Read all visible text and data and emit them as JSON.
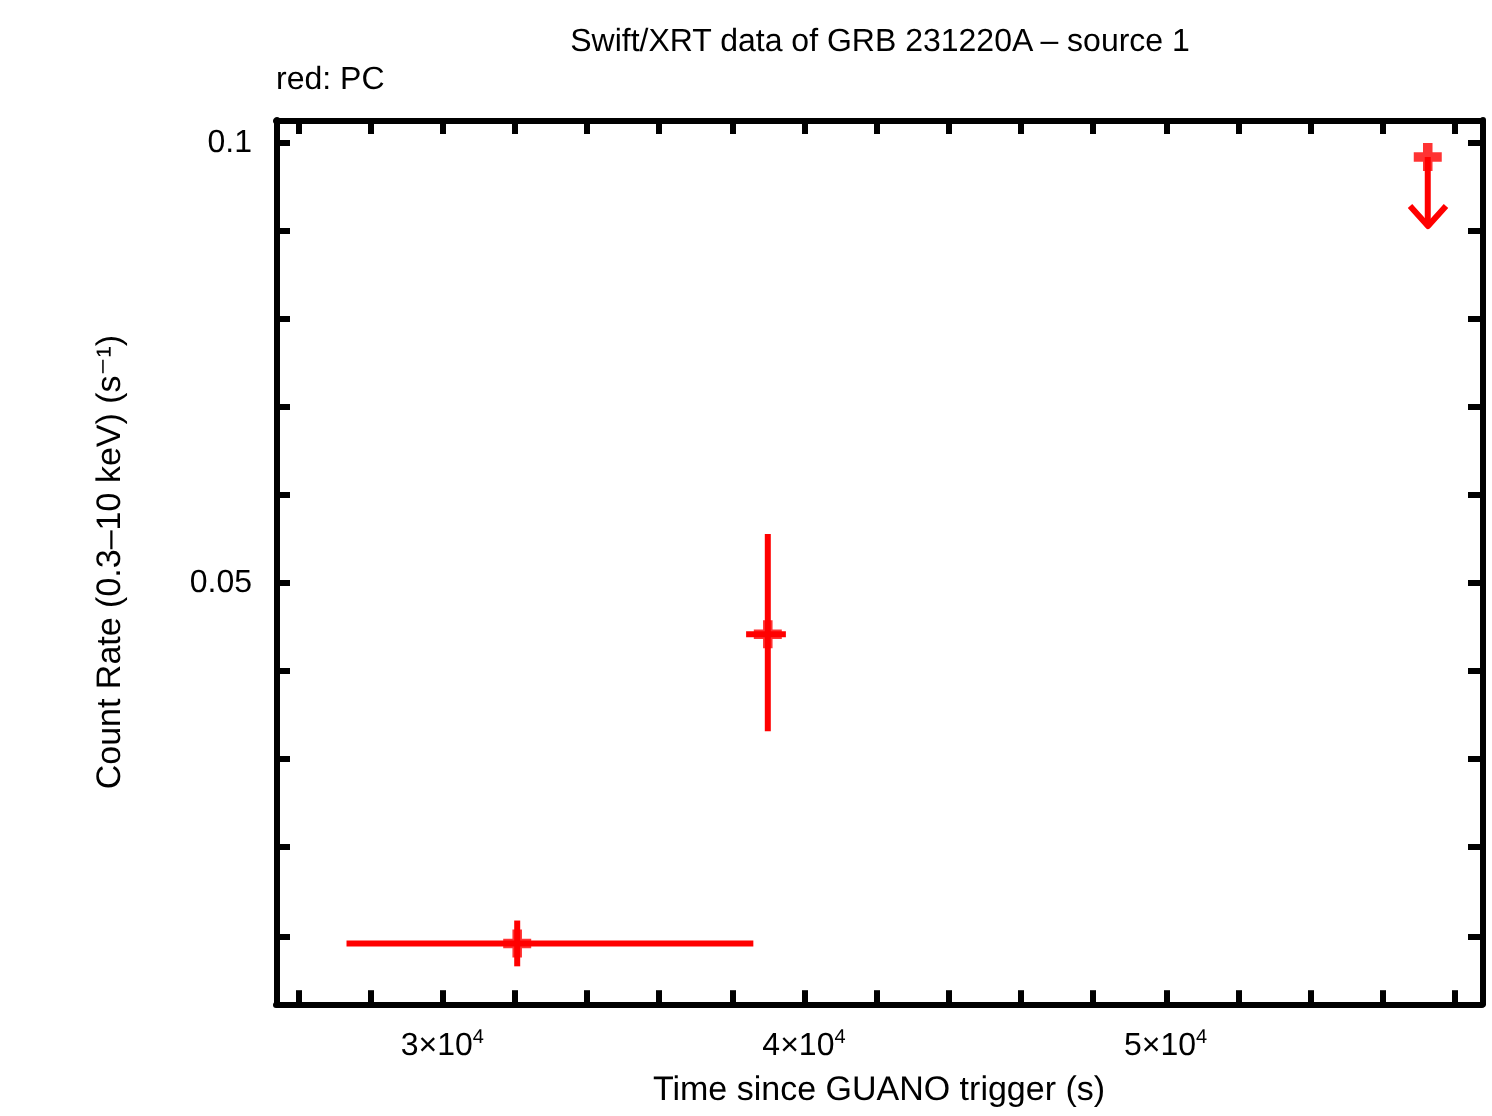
{
  "chart_data": {
    "type": "scatter",
    "title": "Swift/XRT data of GRB 231220A – source 1",
    "xlabel": "Time since GUANO trigger (s)",
    "ylabel": "Count Rate (0.3–10 keV) (s⁻¹)",
    "annotations": [
      "red: PC"
    ],
    "marker": "cross",
    "grid": false,
    "xlim": [
      25400,
      58750
    ],
    "ylim": [
      0.0022,
      0.1026
    ],
    "xticks": [
      {
        "value": 26000,
        "label": null
      },
      {
        "value": 28000,
        "label": null
      },
      {
        "value": 30000,
        "label": "3×10$^{4}$"
      },
      {
        "value": 32000,
        "label": null
      },
      {
        "value": 34000,
        "label": null
      },
      {
        "value": 36000,
        "label": null
      },
      {
        "value": 38000,
        "label": null
      },
      {
        "value": 40000,
        "label": "4×10$^{4}$"
      },
      {
        "value": 42000,
        "label": null
      },
      {
        "value": 44000,
        "label": null
      },
      {
        "value": 46000,
        "label": null
      },
      {
        "value": 48000,
        "label": null
      },
      {
        "value": 50000,
        "label": "5×10$^{4}$"
      },
      {
        "value": 52000,
        "label": null
      },
      {
        "value": 54000,
        "label": null
      },
      {
        "value": 56000,
        "label": null
      },
      {
        "value": 58000,
        "label": null
      }
    ],
    "yticks": [
      {
        "value": 0.01,
        "label": null
      },
      {
        "value": 0.02,
        "label": null
      },
      {
        "value": 0.03,
        "label": null
      },
      {
        "value": 0.04,
        "label": null
      },
      0.05,
      {
        "value": 0.06,
        "label": null
      },
      {
        "value": 0.07,
        "label": null
      },
      {
        "value": 0.08,
        "label": null
      },
      {
        "value": 0.09,
        "label": null
      },
      0.1
    ],
    "series": [
      {
        "color": "#ff0000",
        "x": [
          32070,
          39000
        ],
        "values": [
          0.0091,
          0.0442
        ],
        "xerrors": [
          [
            27350,
            38600
          ],
          [
            38400,
            39500
          ]
        ],
        "errors": [
          0.0026,
          [
            0.0332,
            0.0556
          ]
        ]
      },
      {
        "color": "#ff0000",
        "x": [
          57250
        ],
        "values": [
          0.0984
        ],
        "errors": [
          [
            0.0906,
            0.0984
          ]
        ]
      }
    ]
  }
}
